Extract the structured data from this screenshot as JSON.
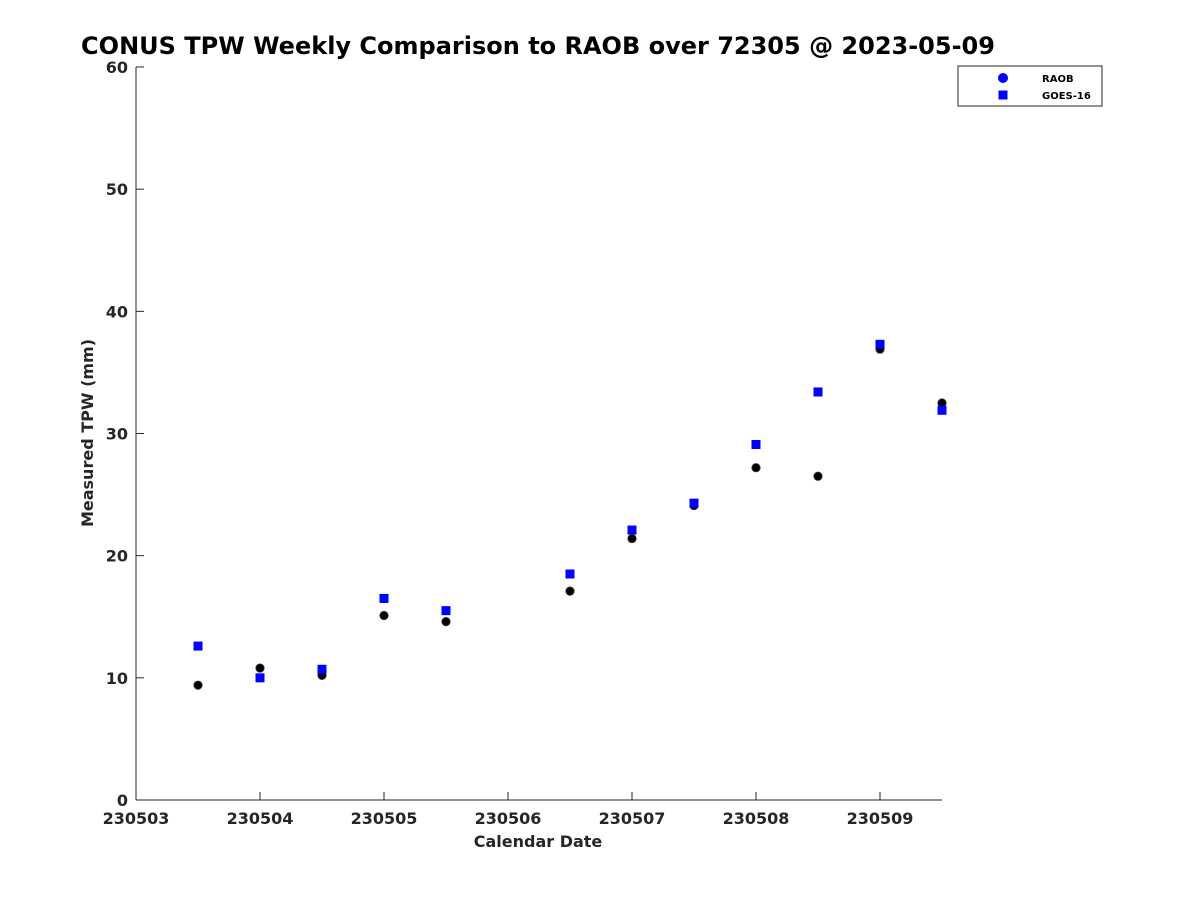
{
  "chart_data": {
    "type": "scatter",
    "title": "CONUS TPW Weekly Comparison to RAOB over 72305 @ 2023-05-09",
    "xlabel": "Calendar Date",
    "ylabel": "Measured TPW (mm)",
    "xlim": [
      230503,
      230509.5
    ],
    "ylim": [
      0,
      60
    ],
    "x_ticks": [
      230503,
      230504,
      230505,
      230506,
      230507,
      230508,
      230509
    ],
    "x_tick_labels": [
      "230503",
      "230504",
      "230505",
      "230506",
      "230507",
      "230508",
      "230509"
    ],
    "y_ticks": [
      0,
      10,
      20,
      30,
      40,
      50,
      60
    ],
    "y_tick_labels": [
      "0",
      "10",
      "20",
      "30",
      "40",
      "50",
      "60"
    ],
    "grid": false,
    "legend_position": "top-right",
    "series": [
      {
        "name": "RAOB",
        "marker": "circle",
        "color": "#000000",
        "legend_color": "#0000ff",
        "x": [
          230503.5,
          230504,
          230504.5,
          230505,
          230505.5,
          230506.5,
          230507,
          230507.5,
          230508,
          230508.5,
          230509,
          230509.5
        ],
        "y": [
          9.4,
          10.8,
          10.2,
          15.1,
          14.6,
          17.1,
          21.4,
          24.1,
          27.2,
          26.5,
          36.9,
          32.5
        ]
      },
      {
        "name": "GOES-16",
        "marker": "square",
        "color": "#0000ff",
        "legend_color": "#0000ff",
        "x": [
          230503.5,
          230504,
          230504.5,
          230505,
          230505.5,
          230506.5,
          230507,
          230507.5,
          230508,
          230508.5,
          230509,
          230509.5
        ],
        "y": [
          12.6,
          10.0,
          10.7,
          16.5,
          15.5,
          18.5,
          22.1,
          24.3,
          29.1,
          33.4,
          37.3,
          31.9
        ]
      }
    ]
  }
}
